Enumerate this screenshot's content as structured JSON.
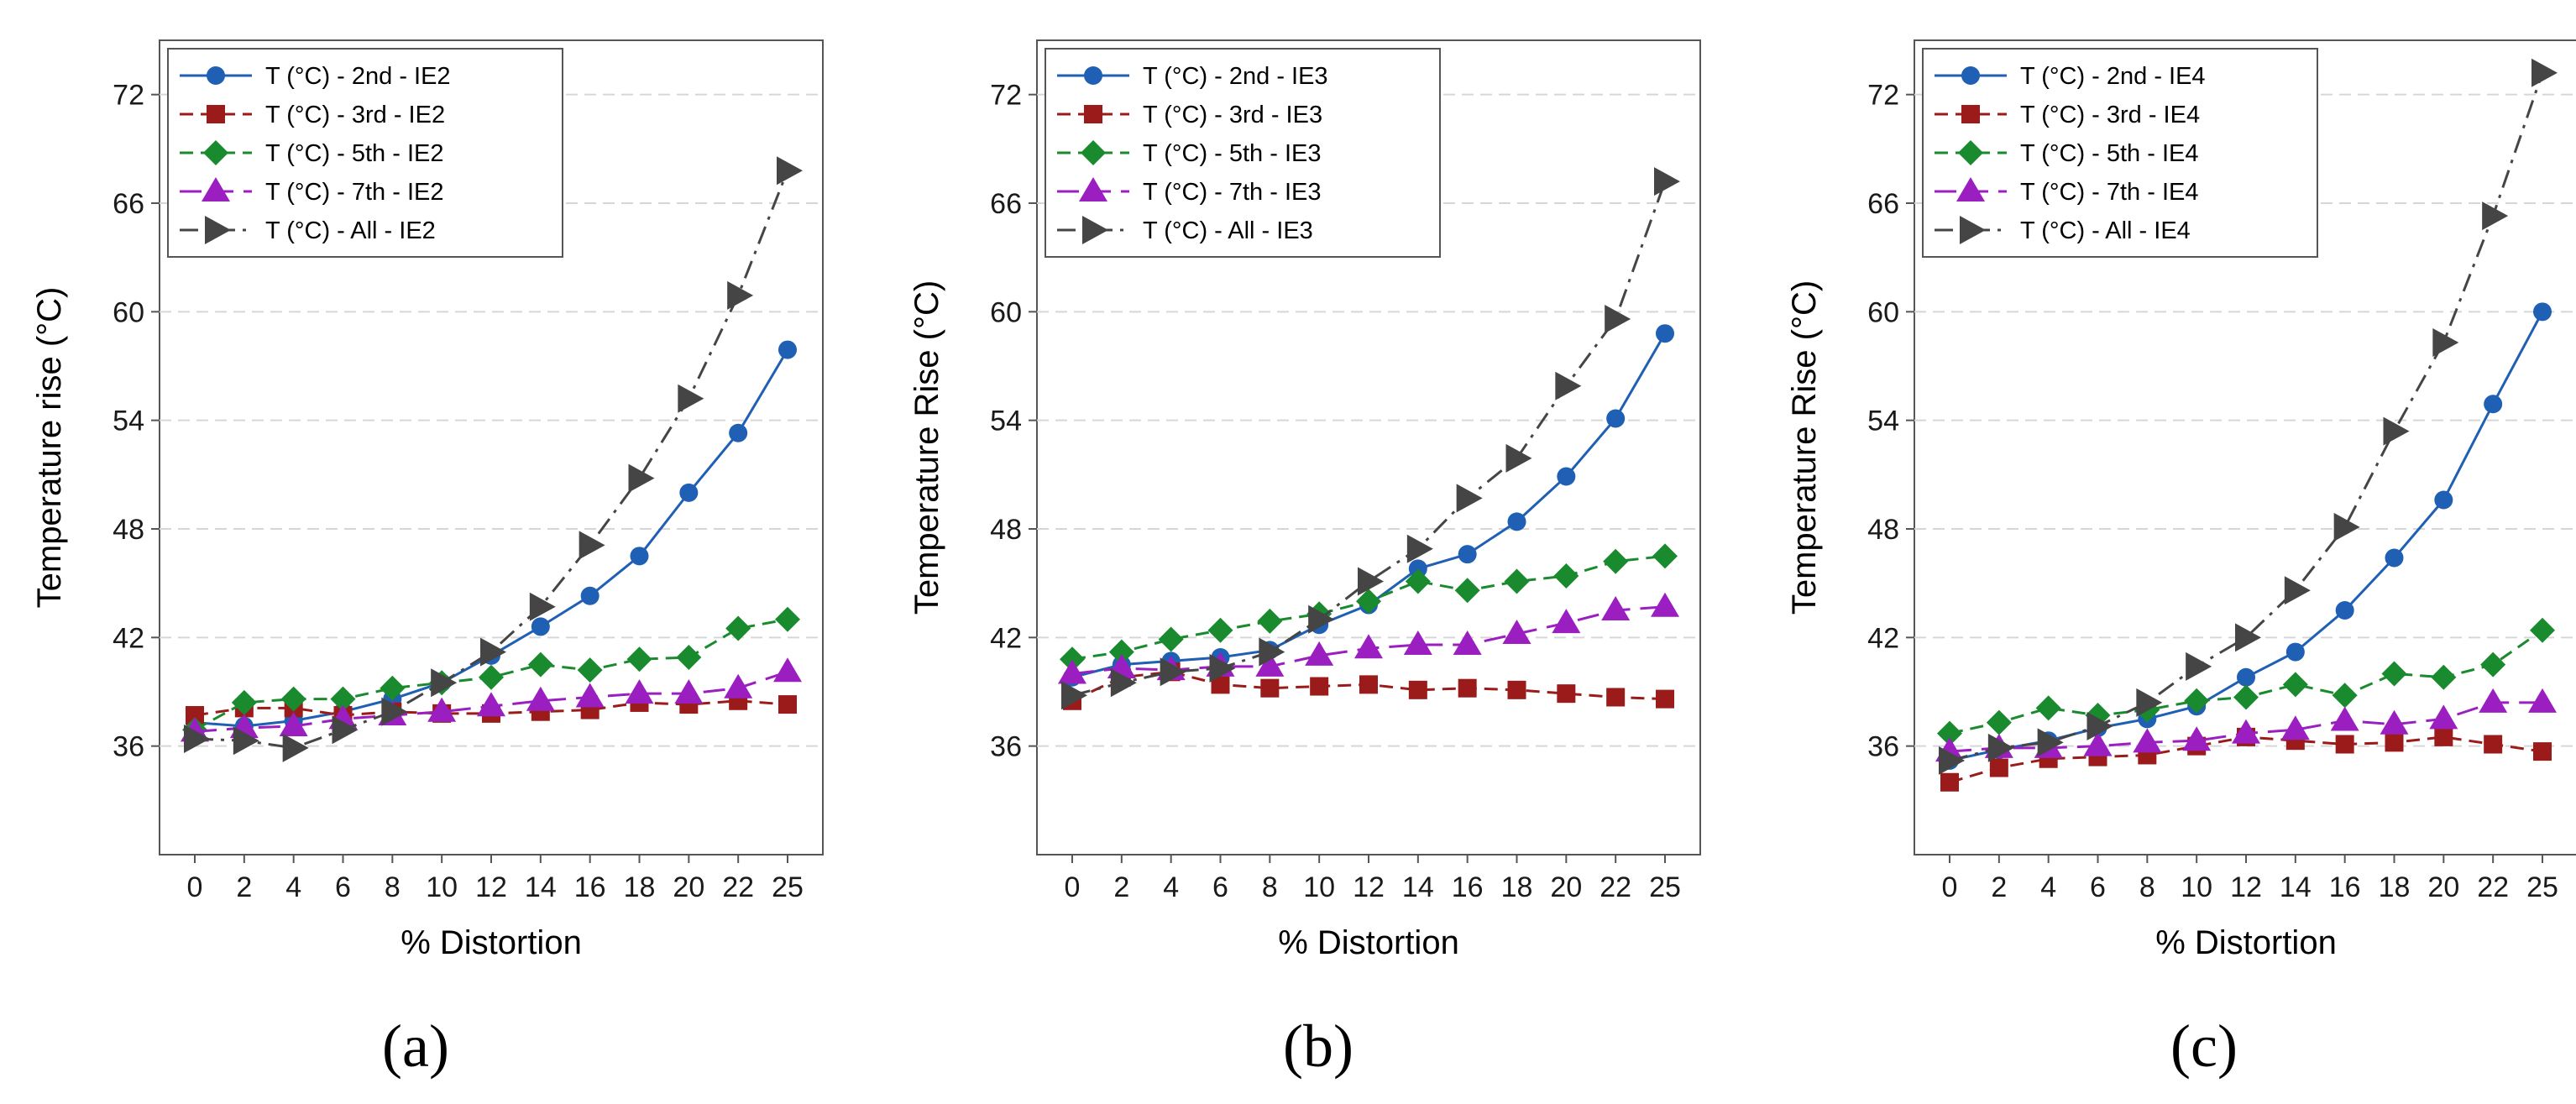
{
  "chart_data": [
    {
      "id": "a",
      "type": "line",
      "panel_label": "(a)",
      "title": "",
      "xlabel": "% Distortion",
      "ylabel": "Temperature rise (°C)",
      "categories": [
        "0",
        "2",
        "4",
        "6",
        "8",
        "10",
        "12",
        "14",
        "16",
        "18",
        "20",
        "22",
        "25"
      ],
      "ylim": [
        30,
        75
      ],
      "yticks": [
        36,
        42,
        48,
        54,
        60,
        66,
        72
      ],
      "grid": "horizontal dashed",
      "legend_position": "top-left",
      "series": [
        {
          "name": "T (°C) - 2nd - IE2",
          "color": "#1f5fb4",
          "marker": "circle",
          "dash": "solid",
          "values": [
            37.3,
            37.1,
            37.4,
            37.9,
            38.6,
            39.5,
            41.0,
            42.6,
            44.3,
            46.5,
            50.0,
            53.3,
            57.9
          ]
        },
        {
          "name": "T (°C) - 3rd - IE2",
          "color": "#9b1a1a",
          "marker": "square",
          "dash": "dashed",
          "values": [
            37.7,
            38.1,
            38.1,
            37.7,
            37.9,
            37.8,
            37.8,
            37.9,
            38.0,
            38.4,
            38.3,
            38.5,
            38.3
          ]
        },
        {
          "name": "T (°C) - 5th - IE2",
          "color": "#1a8a2e",
          "marker": "diamond",
          "dash": "dashed",
          "values": [
            36.9,
            38.4,
            38.6,
            38.6,
            39.2,
            39.5,
            39.8,
            40.5,
            40.2,
            40.8,
            40.9,
            42.5,
            43.0
          ]
        },
        {
          "name": "T (°C) - 7th - IE2",
          "color": "#9b1fc0",
          "marker": "triangle",
          "dash": "longdash",
          "values": [
            36.8,
            37.0,
            37.1,
            37.5,
            37.7,
            37.9,
            38.2,
            38.5,
            38.7,
            38.9,
            38.9,
            39.2,
            40.1
          ]
        },
        {
          "name": "T (°C) - All -  IE2",
          "color": "#454545",
          "marker": "triangle-right",
          "dash": "dashdot",
          "values": [
            36.4,
            36.3,
            35.9,
            36.9,
            37.9,
            39.5,
            41.2,
            43.7,
            47.1,
            50.8,
            55.2,
            60.9,
            67.8
          ]
        }
      ]
    },
    {
      "id": "b",
      "type": "line",
      "panel_label": "(b)",
      "title": "",
      "xlabel": "% Distortion",
      "ylabel": "Temperature Rise (°C)",
      "categories": [
        "0",
        "2",
        "4",
        "6",
        "8",
        "10",
        "12",
        "14",
        "16",
        "18",
        "20",
        "22",
        "25"
      ],
      "ylim": [
        30,
        75
      ],
      "yticks": [
        36,
        42,
        48,
        54,
        60,
        66,
        72
      ],
      "grid": "horizontal dashed",
      "legend_position": "top-left",
      "series": [
        {
          "name": "T (°C) - 2nd - IE3",
          "color": "#1f5fb4",
          "marker": "circle",
          "dash": "solid",
          "values": [
            39.8,
            40.5,
            40.7,
            40.9,
            41.3,
            42.7,
            43.8,
            45.8,
            46.6,
            48.4,
            50.9,
            54.1,
            58.8
          ]
        },
        {
          "name": "T (°C) - 3rd - IE3",
          "color": "#9b1a1a",
          "marker": "square",
          "dash": "dashed",
          "values": [
            38.5,
            39.8,
            40.1,
            39.4,
            39.2,
            39.3,
            39.4,
            39.1,
            39.2,
            39.1,
            38.9,
            38.7,
            38.6
          ]
        },
        {
          "name": "T (°C) - 5th - IE3",
          "color": "#1a8a2e",
          "marker": "diamond",
          "dash": "dashed",
          "values": [
            40.8,
            41.2,
            41.9,
            42.4,
            42.9,
            43.3,
            44.0,
            45.1,
            44.6,
            45.1,
            45.4,
            46.2,
            46.5
          ]
        },
        {
          "name": "T (°C) - 7th - IE3",
          "color": "#9b1fc0",
          "marker": "triangle",
          "dash": "longdash",
          "values": [
            40.0,
            40.3,
            40.2,
            40.4,
            40.4,
            41.0,
            41.4,
            41.6,
            41.6,
            42.2,
            42.8,
            43.5,
            43.7
          ]
        },
        {
          "name": "T (°C) - All -  IE3",
          "color": "#454545",
          "marker": "triangle-right",
          "dash": "dashdot",
          "values": [
            38.8,
            39.5,
            40.1,
            40.3,
            41.2,
            43.0,
            45.1,
            46.9,
            49.7,
            51.9,
            55.9,
            59.6,
            67.2
          ]
        }
      ]
    },
    {
      "id": "c",
      "type": "line",
      "panel_label": "(c)",
      "title": "",
      "xlabel": "% Distortion",
      "ylabel": "Temperature Rise (°C)",
      "categories": [
        "0",
        "2",
        "4",
        "6",
        "8",
        "10",
        "12",
        "14",
        "16",
        "18",
        "20",
        "22",
        "25"
      ],
      "ylim": [
        30,
        75
      ],
      "yticks": [
        36,
        42,
        48,
        54,
        60,
        66,
        72
      ],
      "grid": "horizontal dashed",
      "legend_position": "top-left",
      "series": [
        {
          "name": "T (°C) - 2nd - IE4",
          "color": "#1f5fb4",
          "marker": "circle",
          "dash": "solid",
          "values": [
            35.2,
            35.8,
            36.3,
            37.0,
            37.5,
            38.2,
            39.8,
            41.2,
            43.5,
            46.4,
            49.6,
            54.9,
            60.0
          ]
        },
        {
          "name": "T (°C) - 3rd - IE4",
          "color": "#9b1a1a",
          "marker": "square",
          "dash": "dashed",
          "values": [
            34.0,
            34.8,
            35.3,
            35.4,
            35.5,
            36.0,
            36.5,
            36.3,
            36.1,
            36.2,
            36.5,
            36.1,
            35.7
          ]
        },
        {
          "name": "T (°C) - 5th - IE4",
          "color": "#1a8a2e",
          "marker": "diamond",
          "dash": "dashed",
          "values": [
            36.7,
            37.3,
            38.1,
            37.7,
            38.0,
            38.5,
            38.7,
            39.4,
            38.8,
            40.0,
            39.8,
            40.5,
            42.4
          ]
        },
        {
          "name": "T (°C) - 7th - IE4",
          "color": "#9b1fc0",
          "marker": "triangle",
          "dash": "longdash",
          "values": [
            35.7,
            35.9,
            35.9,
            36.0,
            36.2,
            36.3,
            36.7,
            36.9,
            37.4,
            37.2,
            37.5,
            38.4,
            38.4
          ]
        },
        {
          "name": "T (°C) - All -  IE4",
          "color": "#454545",
          "marker": "triangle-right",
          "dash": "dashdot",
          "values": [
            35.2,
            35.9,
            36.2,
            37.1,
            38.4,
            40.4,
            42.0,
            44.6,
            48.1,
            53.4,
            58.3,
            65.3,
            73.2
          ]
        }
      ]
    }
  ]
}
